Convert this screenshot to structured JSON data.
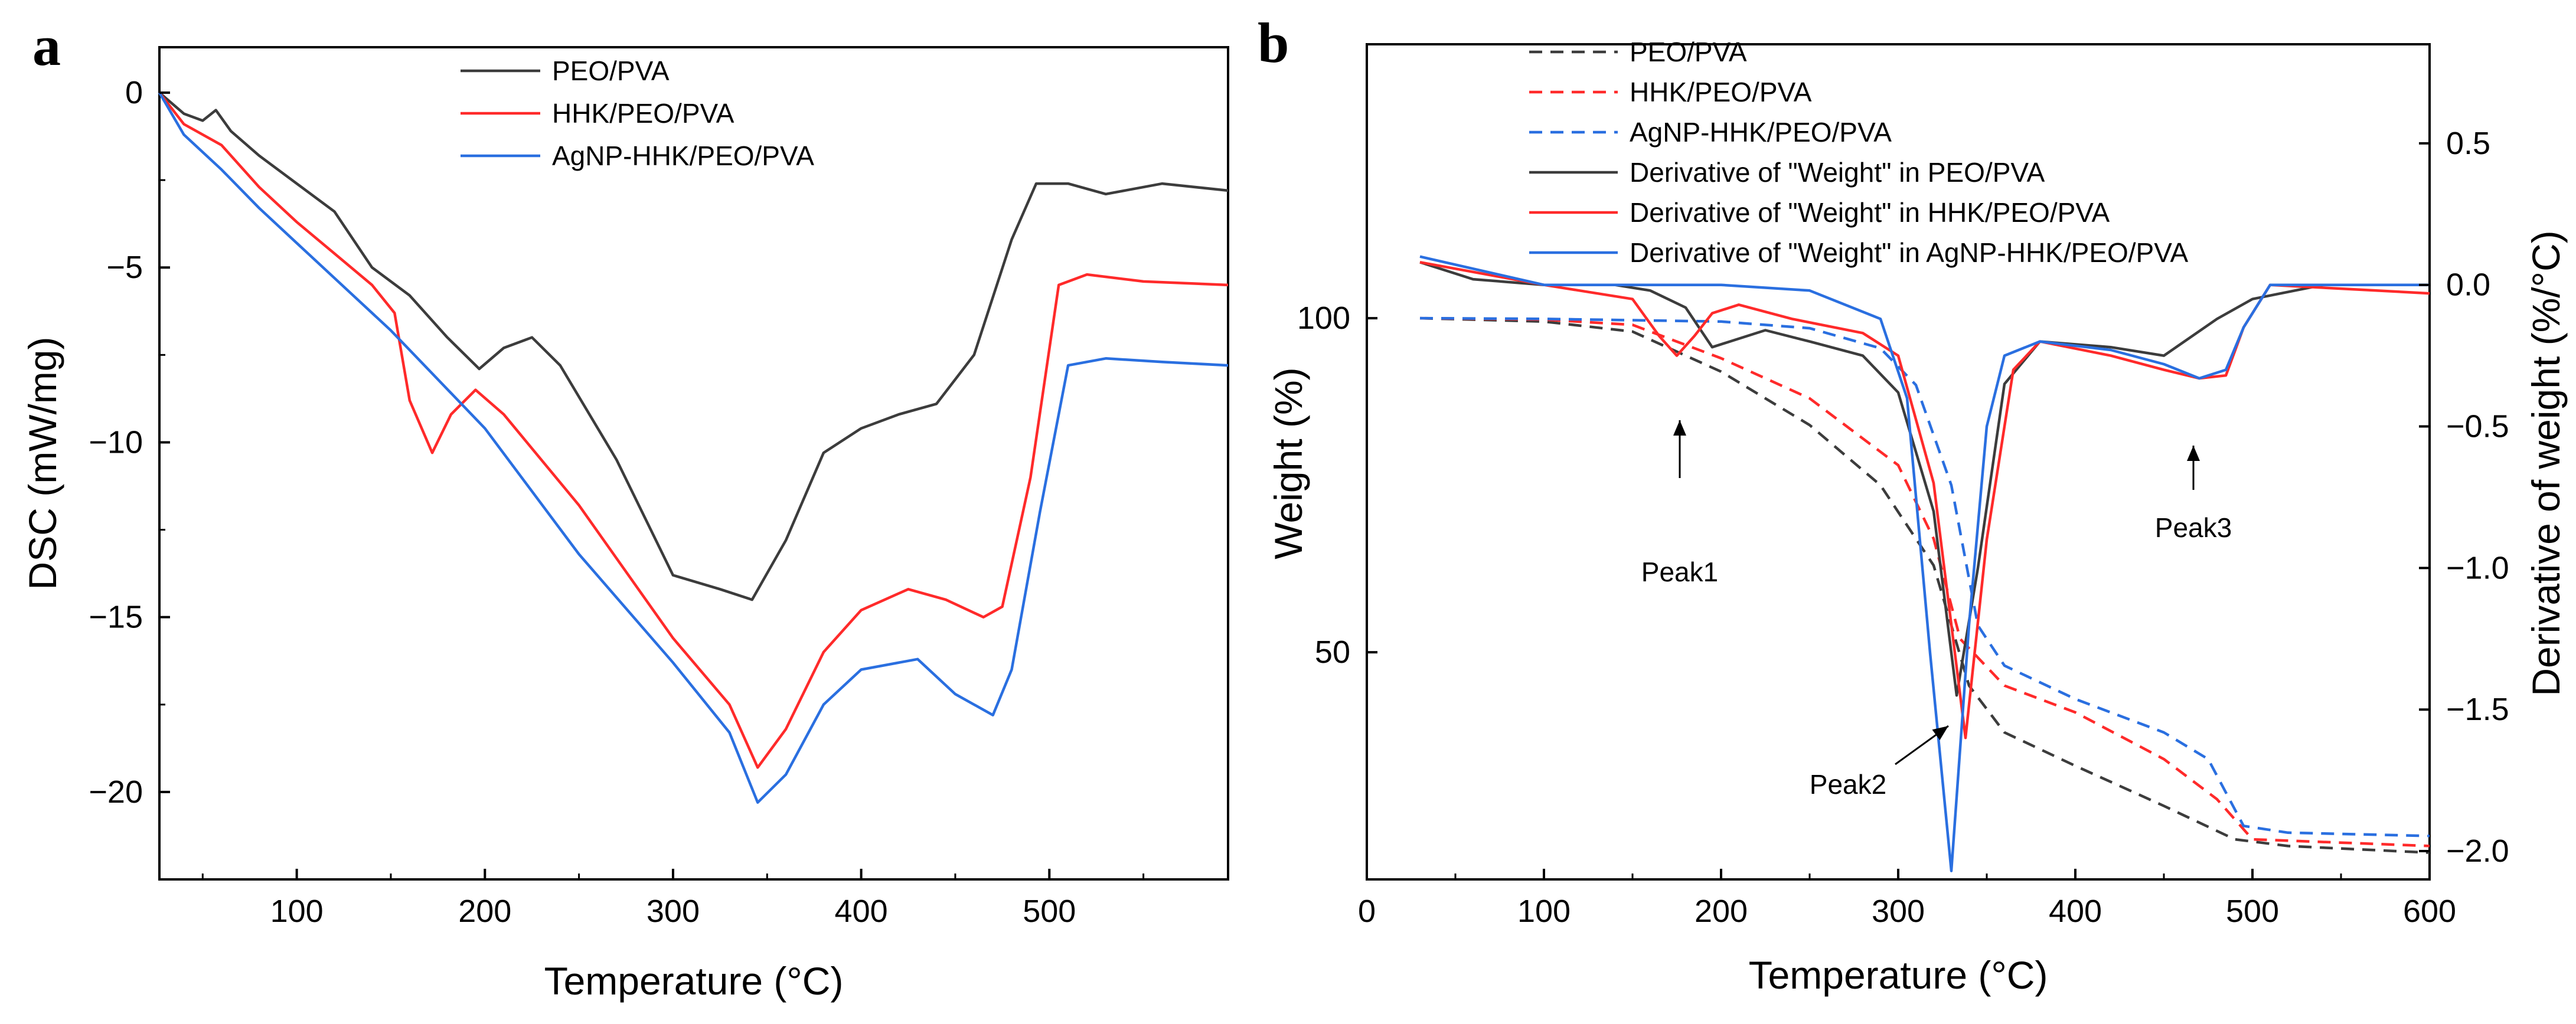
{
  "chart_data": [
    {
      "panel": "a",
      "type": "line",
      "title": "",
      "xlabel": "Temperature (°C)",
      "ylabel": "DSC (mW/mg)",
      "xlim": [
        27,
        595
      ],
      "ylim": [
        -22.5,
        1.3
      ],
      "xticks": [
        100,
        200,
        300,
        400,
        500
      ],
      "yticks": [
        0,
        -5,
        -10,
        -15,
        -20
      ],
      "grid": false,
      "legend_position": "top-center",
      "series": [
        {
          "name": "PEO/PVA",
          "color": "#3c3c3c",
          "style": "solid",
          "x": [
            27,
            40,
            50,
            57,
            65,
            80,
            100,
            120,
            140,
            160,
            180,
            197,
            210,
            225,
            240,
            270,
            300,
            325,
            342,
            360,
            380,
            400,
            420,
            440,
            460,
            480,
            493,
            510,
            530,
            560,
            595
          ],
          "y": [
            0,
            -0.6,
            -0.8,
            -0.5,
            -1.1,
            -1.8,
            -2.6,
            -3.4,
            -5.0,
            -5.8,
            -7.0,
            -7.9,
            -7.3,
            -7.0,
            -7.8,
            -10.5,
            -13.8,
            -14.2,
            -14.5,
            -12.8,
            -10.3,
            -9.6,
            -9.2,
            -8.9,
            -7.5,
            -4.2,
            -2.6,
            -2.6,
            -2.9,
            -2.6,
            -2.8
          ]
        },
        {
          "name": "HHK/PEO/PVA",
          "color": "#ff2a2a",
          "style": "solid",
          "x": [
            27,
            40,
            60,
            80,
            100,
            120,
            140,
            152,
            160,
            172,
            182,
            195,
            210,
            250,
            300,
            330,
            345,
            360,
            380,
            400,
            425,
            445,
            465,
            475,
            490,
            505,
            520,
            550,
            595
          ],
          "y": [
            0,
            -0.9,
            -1.5,
            -2.7,
            -3.7,
            -4.6,
            -5.5,
            -6.3,
            -8.8,
            -10.3,
            -9.2,
            -8.5,
            -9.2,
            -11.8,
            -15.6,
            -17.5,
            -19.3,
            -18.2,
            -16.0,
            -14.8,
            -14.2,
            -14.5,
            -15.0,
            -14.7,
            -11.0,
            -5.5,
            -5.2,
            -5.4,
            -5.5
          ]
        },
        {
          "name": "AgNP-HHK/PEO/PVA",
          "color": "#2a6fe0",
          "style": "solid",
          "x": [
            27,
            40,
            60,
            80,
            100,
            150,
            200,
            250,
            300,
            330,
            345,
            360,
            380,
            400,
            430,
            450,
            470,
            480,
            495,
            510,
            530,
            560,
            595
          ],
          "y": [
            0,
            -1.2,
            -2.2,
            -3.3,
            -4.3,
            -6.8,
            -9.6,
            -13.2,
            -16.3,
            -18.3,
            -20.3,
            -19.5,
            -17.5,
            -16.5,
            -16.2,
            -17.2,
            -17.8,
            -16.5,
            -12.0,
            -7.8,
            -7.6,
            -7.7,
            -7.8
          ]
        }
      ]
    },
    {
      "panel": "b",
      "type": "line",
      "title": "",
      "xlabel": "Temperature (°C)",
      "ylabel": "Weight (%)",
      "y2label": "Derivative of weight (%/°C)",
      "xlim": [
        0,
        600
      ],
      "ylim": [
        16,
        141
      ],
      "y2lim": [
        -2.1,
        0.85
      ],
      "xticks": [
        0,
        100,
        200,
        300,
        400,
        500,
        600
      ],
      "yticks": [
        50,
        100
      ],
      "y2ticks": [
        0.5,
        0.0,
        -0.5,
        -1.0,
        -1.5,
        -2.0
      ],
      "y2ticklabels": [
        "0.5",
        "0.0",
        "−0.5",
        "−1.0",
        "−1.5",
        "−2.0"
      ],
      "grid": false,
      "legend_position": "top-center",
      "series": [
        {
          "name": "PEO/PVA",
          "axis": "left",
          "color": "#3c3c3c",
          "style": "dashed",
          "x": [
            30,
            100,
            150,
            200,
            250,
            290,
            320,
            340,
            360,
            400,
            450,
            490,
            520,
            560,
            600
          ],
          "y": [
            100,
            99.5,
            98,
            92,
            84,
            75,
            63,
            45,
            38,
            33,
            27,
            22,
            21,
            20.5,
            20
          ]
        },
        {
          "name": "HHK/PEO/PVA",
          "axis": "left",
          "color": "#ff2a2a",
          "style": "dashed",
          "x": [
            30,
            100,
            150,
            200,
            250,
            300,
            320,
            335,
            360,
            400,
            450,
            480,
            500,
            550,
            600
          ],
          "y": [
            100,
            99.8,
            99,
            94,
            88,
            78,
            67,
            52,
            45,
            41,
            34,
            28,
            22,
            21.5,
            21
          ]
        },
        {
          "name": "AgNP-HHK/PEO/PVA",
          "axis": "left",
          "color": "#2a6fe0",
          "style": "dashed",
          "x": [
            30,
            100,
            200,
            250,
            290,
            310,
            330,
            345,
            360,
            400,
            450,
            475,
            495,
            520,
            600
          ],
          "y": [
            100,
            99.9,
            99.5,
            98.5,
            95.5,
            90,
            75,
            54,
            48,
            43,
            38,
            34,
            24,
            23,
            22.5
          ]
        },
        {
          "name": "Derivative of \"Weight\" in PEO/PVA",
          "axis": "right",
          "color": "#3c3c3c",
          "style": "solid",
          "x": [
            30,
            60,
            100,
            140,
            160,
            180,
            195,
            205,
            225,
            250,
            280,
            300,
            320,
            333,
            345,
            360,
            380,
            420,
            450,
            480,
            500,
            540,
            580,
            600
          ],
          "y": [
            0.08,
            0.02,
            0.0,
            0.0,
            -0.02,
            -0.08,
            -0.22,
            -0.2,
            -0.16,
            -0.2,
            -0.25,
            -0.38,
            -0.8,
            -1.45,
            -1.0,
            -0.35,
            -0.2,
            -0.22,
            -0.25,
            -0.12,
            -0.05,
            0.0,
            0.0,
            0.0
          ]
        },
        {
          "name": "Derivative of \"Weight\" in HHK/PEO/PVA",
          "axis": "right",
          "color": "#ff2a2a",
          "style": "solid",
          "x": [
            30,
            100,
            150,
            165,
            175,
            185,
            195,
            210,
            240,
            280,
            300,
            320,
            338,
            350,
            365,
            380,
            420,
            450,
            470,
            485,
            495,
            510,
            600
          ],
          "y": [
            0.08,
            0.0,
            -0.05,
            -0.18,
            -0.25,
            -0.18,
            -0.1,
            -0.07,
            -0.12,
            -0.17,
            -0.25,
            -0.7,
            -1.6,
            -0.9,
            -0.3,
            -0.2,
            -0.25,
            -0.3,
            -0.33,
            -0.32,
            -0.15,
            0.0,
            -0.03
          ]
        },
        {
          "name": "Derivative of \"Weight\" in AgNP-HHK/PEO/PVA",
          "axis": "right",
          "color": "#2a6fe0",
          "style": "solid",
          "x": [
            30,
            100,
            150,
            200,
            250,
            290,
            305,
            318,
            330,
            340,
            350,
            360,
            380,
            420,
            450,
            470,
            485,
            495,
            510,
            600
          ],
          "y": [
            0.1,
            0.0,
            0.0,
            0.0,
            -0.02,
            -0.12,
            -0.4,
            -1.3,
            -2.07,
            -1.2,
            -0.5,
            -0.25,
            -0.2,
            -0.23,
            -0.28,
            -0.33,
            -0.3,
            -0.15,
            0.0,
            0.0
          ]
        }
      ],
      "annotations": [
        {
          "label": "Peak1",
          "x": 177,
          "y2": -0.25
        },
        {
          "label": "Peak2",
          "x": 322,
          "y2": -1.53
        },
        {
          "label": "Peak3",
          "x": 466,
          "y2": -0.32
        }
      ]
    }
  ]
}
